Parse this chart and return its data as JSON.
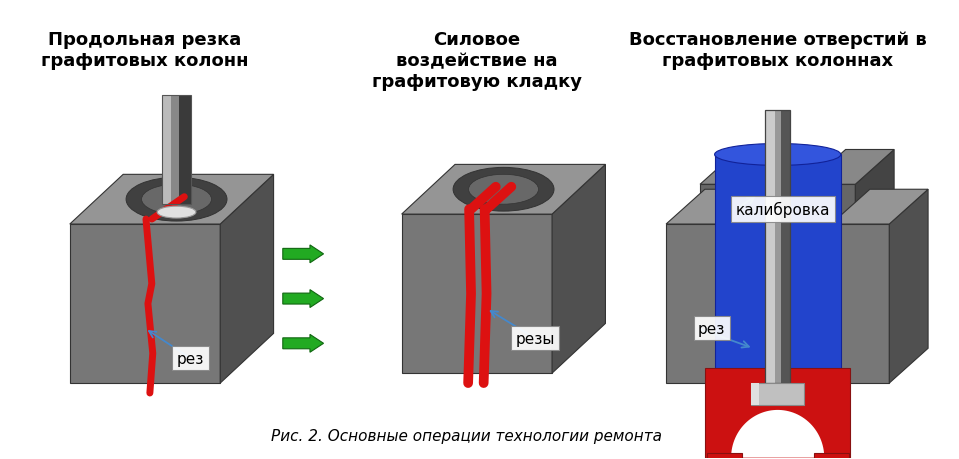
{
  "background_color": "#ffffff",
  "caption": "Рис. 2. Основные операции технологии ремонта",
  "caption_fontsize": 11,
  "panel1_title": "Продольная резка\nграфитовых колонн",
  "panel2_title": "Силовое\nвоздействие на\nграфитовую кладку",
  "panel3_title": "Восстановление отверстий в\nграфитовых колоннах",
  "title_fontsize": 13,
  "label_fontsize": 11,
  "label1": "рез",
  "label2": "резы",
  "label3a": "калибровка",
  "label3b": "рез",
  "arrow_green": "#22aa22",
  "arrow_blue": "#4488cc",
  "red_cut": "#dd1111",
  "gray_dark": "#444444",
  "gray_mid": "#666666",
  "gray_front": "#777777",
  "gray_top": "#999999",
  "gray_light": "#aaaaaa",
  "gray_side": "#555555"
}
